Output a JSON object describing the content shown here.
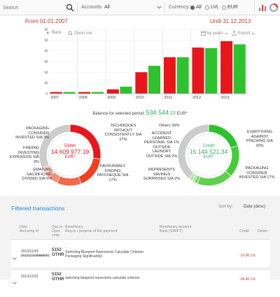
{
  "topbar": {
    "search_placeholder": "Search",
    "accounts_label": "Accounts:",
    "accounts_value": "All",
    "currency_label": "Currency:",
    "currency_options": [
      "All",
      "LVL",
      "EUR"
    ],
    "currency_selected": "All"
  },
  "period": {
    "from": "From 01.01.2007",
    "until": "Until 31.12.2013"
  },
  "toolbar": {
    "back": "Back",
    "zoom_out": "Zoom-out",
    "by_years": "by years",
    "export": "Export"
  },
  "chart_data": {
    "type": "bar",
    "categories": [
      "2007",
      "2008",
      "2009",
      "2010",
      "2011",
      "2012",
      "2013"
    ],
    "series": [
      {
        "values": [
          0.15,
          0.15,
          0.4,
          2.0,
          3.4,
          4.3,
          4.9
        ],
        "color": "#e8161b"
      },
      {
        "values": [
          0.15,
          0.15,
          0.65,
          2.6,
          3.4,
          4.25,
          4.6
        ],
        "color": "#2ec22e"
      }
    ],
    "yticks": [
      "0",
      "1 M",
      "2 M",
      "3 M",
      "4 M",
      "5 M",
      "6 M"
    ],
    "ylim": [
      0,
      6
    ]
  },
  "balance": {
    "label": "Balance for selected period:",
    "amount": "534 544",
    "decimals": ",15",
    "unit": "EUR*"
  },
  "debit": {
    "title": "Debet",
    "amount": "14 609 977.19",
    "unit": "EUR*",
    "labels": {
      "packaging": [
        "PACKAGING",
        "CONSIDER",
        "INVESTED SIA 3%"
      ],
      "finding": [
        "FINDING",
        "INVESTING",
        "EXPENSIVE SIA",
        "3%"
      ],
      "emailing": [
        "EMAILING",
        "SACRIFICING",
        "DIVIDED SIA 5%"
      ],
      "techniques": [
        "TECHNIQUES",
        "WITHOUT",
        "CONSISTENTLY SIA",
        "27%"
      ],
      "favourably": [
        "FAVOURABLY",
        "FINDING",
        "PAYCHEQUE SIA",
        "17%"
      ]
    },
    "slices": [
      27,
      17,
      13,
      5,
      3,
      3,
      32
    ]
  },
  "credit": {
    "title": "Credit",
    "amount": "15 144 521,34",
    "unit": "EUR*",
    "labels": {
      "others": [
        "Others 39%"
      ],
      "accident": [
        "ACCIDENT",
        "LEARNED",
        "PERSONAL SIA 1%",
        "OUTSIDE",
        "LAUNDRY",
        "OUTSIDE SIA 2%"
      ],
      "represents": [
        "REPRESENTS",
        "SAVINGS",
        "SURPRISED SIA 2%"
      ],
      "everything": [
        "EVERYTHING",
        "AGAINST",
        "PINCHING SIA",
        "20%"
      ],
      "packaging": [
        "PACKAGING",
        "CONSIDER",
        "INVESTED SIA 17%"
      ]
    },
    "slices": [
      20,
      17,
      19,
      2,
      1,
      2,
      39
    ]
  },
  "transactions": {
    "title": "Filtered transactions",
    "sort_label": "Sort by:",
    "sort_value": "Date (desc)",
    "headers": {
      "date": [
        "Date",
        "Archiving id"
      ],
      "doc": [
        "Doc.nr.",
        "Oper.",
        "code"
      ],
      "beneficiary": [
        "Beneficiary",
        "Reg.nr / purpose of the payment"
      ],
      "bank": [
        "Beneficiary account",
        "Bank (SWIFT)"
      ],
      "credit": "Credit",
      "debet": "Debet"
    },
    "rows": [
      {
        "date": "2013/12/31",
        "archive": "2013123100686001",
        "doc": "5152",
        "oper": "OTHR",
        "dash": "-",
        "purpose": [
          "Switching Blueprint Represents Calculate Criterion",
          "Packaging Significantly)"
        ],
        "credit": "-10.00 LVL"
      },
      {
        "date": "2013/12/31",
        "archive": "",
        "doc": "5152",
        "oper": "OTHR",
        "dash": "-",
        "purpose": [
          "switching blueprint represents calculate criterion"
        ],
        "credit": "-28.46 LVL"
      }
    ]
  }
}
